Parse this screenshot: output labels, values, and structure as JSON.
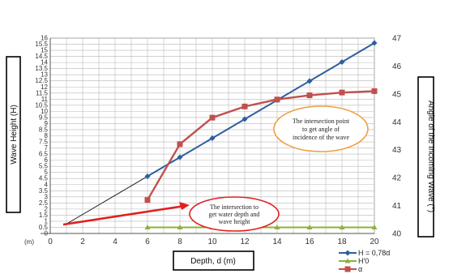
{
  "chart_data": {
    "type": "line",
    "xlabel": "Depth, d (m)",
    "ylabel_left": "Wave Height (H)",
    "ylabel_right": "Angle of the Incoming Wave (°)",
    "x_unit_tick": "(m)",
    "x_ticks": [
      "0",
      "2",
      "4",
      "6",
      "8",
      "10",
      "12",
      "14",
      "16",
      "18",
      "20"
    ],
    "y_left_ticks": [
      "0",
      "0.5",
      "1",
      "1.5",
      "2",
      "2.5",
      "3",
      "3.5",
      "4",
      "4.5",
      "5",
      "5.5",
      "6",
      "6.5",
      "7",
      "7.5",
      "8",
      "8.5",
      "9",
      "9.5",
      "10",
      "10.5",
      "11",
      "11.5",
      "12",
      "12.5",
      "13",
      "13.5",
      "14",
      "14.5",
      "15",
      "15.5",
      "16"
    ],
    "y_right_ticks": [
      "40",
      "41",
      "42",
      "43",
      "44",
      "45",
      "46",
      "47"
    ],
    "xlim": [
      0,
      20
    ],
    "ylim_left": [
      0,
      16
    ],
    "ylim_right": [
      40,
      47
    ],
    "grid": true,
    "legend_position": "bottom-right",
    "series": [
      {
        "name": "H = 0,78d",
        "axis": "left",
        "color": "#2e5f9e",
        "marker": "diamond",
        "x": [
          6,
          8,
          10,
          12,
          14,
          16,
          18,
          20
        ],
        "y": [
          4.68,
          6.24,
          7.8,
          9.36,
          10.92,
          12.48,
          14.04,
          15.6
        ]
      },
      {
        "name": "H'0",
        "axis": "left",
        "color": "#8cb33a",
        "marker": "triangle",
        "x": [
          6,
          8,
          10,
          12,
          14,
          16,
          18,
          20
        ],
        "y": [
          0.5,
          0.5,
          0.5,
          0.5,
          0.5,
          0.5,
          0.5,
          0.5
        ]
      },
      {
        "name": "α",
        "axis": "right",
        "color": "#c0504d",
        "marker": "square",
        "x": [
          6,
          8,
          10,
          12,
          14,
          16,
          18,
          20
        ],
        "y": [
          41.2,
          43.2,
          44.15,
          44.55,
          44.8,
          44.95,
          45.05,
          45.1
        ]
      }
    ],
    "extension_line": {
      "color": "#111111",
      "x": [
        1,
        20
      ],
      "y": [
        0.78,
        15.6
      ]
    },
    "annotations": [
      {
        "text_lines": [
          "The intersection point",
          "to get angle of",
          "incidence of the wave"
        ],
        "style": "ellipse",
        "border_color": "#f0a040"
      },
      {
        "text_lines": [
          "The intersection to",
          "get water depth and",
          "wave height"
        ],
        "style": "ellipse",
        "border_color": "#e02020"
      }
    ]
  }
}
